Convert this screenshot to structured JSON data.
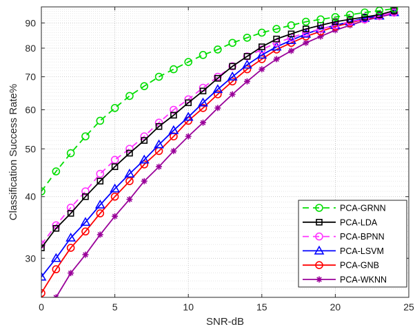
{
  "chart_data": {
    "type": "line",
    "title": "",
    "xlabel": "SNR-dB",
    "ylabel": "Classification Success Rate%",
    "xlim": [
      0,
      25
    ],
    "ylim": [
      25,
      97
    ],
    "yscale": "log",
    "grid": true,
    "minor_grid": true,
    "legend_position": "bottom-right",
    "x_ticks": [
      "0",
      "5",
      "10",
      "15",
      "20",
      "25"
    ],
    "y_ticks": [
      "30",
      "40",
      "50",
      "60",
      "70",
      "80",
      "90"
    ],
    "x": [
      0,
      1,
      2,
      3,
      4,
      5,
      6,
      7,
      8,
      9,
      10,
      11,
      12,
      13,
      14,
      15,
      16,
      17,
      18,
      19,
      20,
      21,
      22,
      23,
      24
    ],
    "series": [
      {
        "name": "PCA-GRNN",
        "color": "#00dd00",
        "line": "dashed",
        "marker": "circle",
        "values": [
          41,
          45,
          49,
          53,
          57,
          60.5,
          64,
          67,
          70,
          72.5,
          75,
          77.5,
          79.5,
          82,
          84,
          86,
          87.5,
          89,
          90.5,
          91.5,
          92.5,
          93.5,
          94.5,
          95.3,
          96.2
        ]
      },
      {
        "name": "PCA-LDA",
        "color": "#000000",
        "line": "solid",
        "marker": "square",
        "values": [
          31.5,
          34.5,
          37,
          40,
          43,
          46,
          49,
          52,
          55.5,
          58.5,
          62,
          65.5,
          69.5,
          73.5,
          77,
          80.5,
          83.5,
          85.5,
          87.5,
          89,
          90.5,
          91.5,
          92.5,
          93.5,
          95.3
        ]
      },
      {
        "name": "PCA-BPNN",
        "color": "#ff33ff",
        "line": "dashed",
        "marker": "circle",
        "values": [
          32,
          35,
          38,
          41,
          44.5,
          47.5,
          50,
          53,
          56.5,
          60,
          63,
          66.5,
          70,
          73.5,
          77,
          79.5,
          82,
          84,
          86,
          87.5,
          89,
          90.5,
          91.5,
          93,
          94.5
        ]
      },
      {
        "name": "PCA-LSVM",
        "color": "#0000ff",
        "line": "solid",
        "marker": "triangle",
        "values": [
          27.5,
          30,
          33,
          35.5,
          38.5,
          41.5,
          44.5,
          47.5,
          51,
          54.5,
          58,
          62,
          66,
          70,
          74,
          77.5,
          80.5,
          83,
          85.5,
          87.5,
          89,
          90.5,
          92,
          93,
          94.5
        ]
      },
      {
        "name": "PCA-GNB",
        "color": "#ff0000",
        "line": "solid",
        "marker": "circle",
        "values": [
          25.5,
          28.5,
          31.5,
          34,
          37,
          40,
          43,
          46.5,
          49.5,
          53,
          57,
          60.5,
          64.5,
          68.5,
          72.5,
          76,
          79.5,
          82,
          84.5,
          86.5,
          88.5,
          90,
          91.5,
          93,
          94.5
        ]
      },
      {
        "name": "PCA-WKNN",
        "color": "#990099",
        "line": "solid",
        "marker": "asterisk",
        "values": [
          22.5,
          25,
          28,
          30.5,
          33.5,
          36.5,
          39.5,
          43,
          46,
          49.5,
          53,
          56.5,
          60.5,
          64.5,
          68.5,
          72.5,
          76,
          79,
          82,
          84.5,
          87,
          89,
          91,
          92.5,
          94
        ]
      }
    ]
  }
}
